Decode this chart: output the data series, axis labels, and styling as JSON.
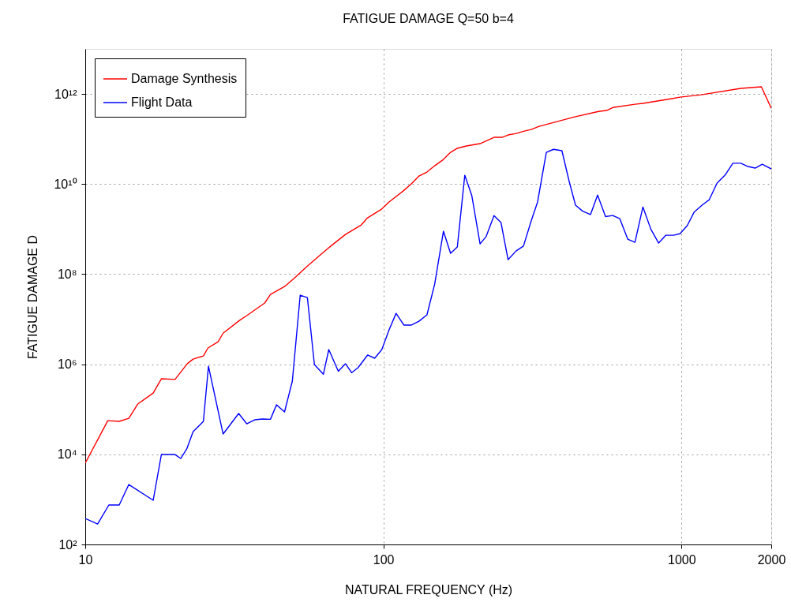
{
  "chart_data": {
    "type": "line",
    "title": "FATIGUE DAMAGE   Q=50   b=4",
    "xlabel": "NATURAL FREQUENCY (Hz)",
    "ylabel": "FATIGUE DAMAGE D",
    "log": "xy",
    "grid": true,
    "legend": "top left",
    "line_style": "solid",
    "marker": "none",
    "xlim": [
      10,
      2000
    ],
    "xticks": [
      10,
      100,
      1000,
      2000
    ],
    "ylim": [
      100,
      10000000000000.0
    ],
    "yticks": [
      {
        "value": 100,
        "label": "10²"
      },
      {
        "value": 10000,
        "label": "10⁴"
      },
      {
        "value": 1000000,
        "label": "10⁶"
      },
      {
        "value": 100000000,
        "label": "10⁸"
      },
      {
        "value": 10000000000,
        "label": "10¹⁰"
      },
      {
        "value": 1000000000000,
        "label": "10¹²"
      }
    ],
    "series": [
      {
        "name": "Damage Synthesis",
        "color": "#ff0000",
        "x": [
          10,
          11.9,
          13,
          14,
          15,
          16.9,
          18,
          20,
          22,
          23,
          24.9,
          25.8,
          27.9,
          29,
          32.9,
          34.8,
          40,
          41.8,
          46.6,
          50.1,
          55.3,
          58.4,
          66,
          74.6,
          84.3,
          88.5,
          98.8,
          104.5,
          116.5,
          123.9,
          131.6,
          140,
          148.6,
          158,
          168,
          176.5,
          190,
          211,
          235,
          250,
          262,
          279,
          297,
          313,
          333,
          438,
          527,
          560,
          588,
          698,
          742,
          929,
          988,
          1164,
          1581,
          1853,
          2000
        ],
        "values": [
          6400,
          56000,
          54000,
          63000,
          131000,
          230000,
          476000,
          460000,
          1030000,
          1300000,
          1530000,
          2300000,
          3170000,
          4900000,
          9400000,
          12000000,
          22900000,
          35600000,
          53000000,
          80000000,
          146000000,
          200000000,
          400000000,
          760000000,
          1240000000,
          1780000000,
          2800000000,
          4000000000,
          7000000000,
          10000000000,
          15000000000,
          18500000000,
          25500000000,
          34000000000,
          50600000000,
          62000000000,
          70000000000,
          79000000000,
          109000000000,
          109000000000,
          123000000000,
          133000000000,
          150000000000,
          163000000000,
          191000000000,
          310000000000,
          410000000000,
          430000000000,
          500000000000,
          590000000000,
          620000000000,
          790000000000,
          850000000000,
          960000000000,
          1330000000000,
          1440000000000,
          480000000000
        ]
      },
      {
        "name": "Flight Data",
        "color": "#0000ff",
        "x": [
          10,
          11,
          12,
          13,
          14,
          16.9,
          18,
          20,
          20.9,
          21.9,
          23,
          24.9,
          25.9,
          29,
          32.7,
          34.8,
          37,
          39.3,
          41.8,
          43.8,
          46.6,
          49.5,
          52.6,
          55.6,
          58.7,
          62.9,
          65.6,
          70.6,
          74.6,
          78.3,
          82.2,
          88.5,
          93.5,
          98.8,
          104.5,
          110.3,
          117.2,
          123.9,
          131.6,
          140,
          148.6,
          159,
          168,
          177,
          187.5,
          198,
          211,
          221,
          235,
          248,
          262,
          279,
          295,
          313,
          329,
          352,
          372,
          397,
          420,
          441,
          466,
          495,
          523,
          556,
          588,
          621,
          660,
          698,
          742,
          789,
          838,
          885,
          940,
          988,
          1045,
          1103,
          1172,
          1239,
          1316,
          1399,
          1487,
          1581,
          1671,
          1766,
          1866,
          2000
        ],
        "values": [
          378,
          285,
          751,
          751,
          2140,
          957,
          9900,
          9900,
          8100,
          13200,
          31900,
          54000,
          908000,
          28300,
          80800,
          47800,
          58500,
          60900,
          60000,
          126000,
          87500,
          422000,
          34200000,
          30300000,
          984000,
          600000,
          2120000,
          700000,
          1030000,
          650000,
          840000,
          1600000,
          1360000,
          2120000,
          5800000,
          13500000,
          7400000,
          7400000,
          9000000,
          12500000,
          60000000,
          897000000,
          290000000,
          400000000,
          15700000000,
          5500000000,
          470000000,
          680000000,
          2000000000,
          1400000000,
          210000000,
          330000000,
          420000000,
          1500000000,
          4000000000,
          50600000000,
          59000000000,
          55000000000,
          11400000000,
          3400000000,
          2500000000,
          2100000000,
          5700000000,
          1900000000,
          2000000000,
          1700000000,
          600000000,
          510000000,
          3100000000,
          1000000000,
          490000000,
          730000000,
          730000000,
          790000000,
          1190000000,
          2400000000,
          3400000000,
          4500000000,
          10500000000,
          15700000000,
          29000000000,
          29000000000,
          24500000000,
          22600000000,
          27600000000,
          21700000000
        ]
      }
    ]
  }
}
